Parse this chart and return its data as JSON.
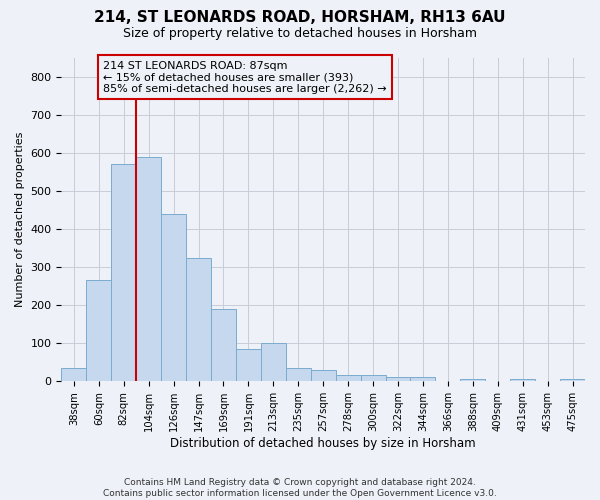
{
  "title_line1": "214, ST LEONARDS ROAD, HORSHAM, RH13 6AU",
  "title_line2": "Size of property relative to detached houses in Horsham",
  "xlabel": "Distribution of detached houses by size in Horsham",
  "ylabel": "Number of detached properties",
  "footer_line1": "Contains HM Land Registry data © Crown copyright and database right 2024.",
  "footer_line2": "Contains public sector information licensed under the Open Government Licence v3.0.",
  "categories": [
    "38sqm",
    "60sqm",
    "82sqm",
    "104sqm",
    "126sqm",
    "147sqm",
    "169sqm",
    "191sqm",
    "213sqm",
    "235sqm",
    "257sqm",
    "278sqm",
    "300sqm",
    "322sqm",
    "344sqm",
    "366sqm",
    "388sqm",
    "409sqm",
    "431sqm",
    "453sqm",
    "475sqm"
  ],
  "values": [
    35,
    265,
    570,
    590,
    440,
    325,
    190,
    85,
    100,
    35,
    30,
    17,
    17,
    12,
    11,
    0,
    7,
    0,
    7,
    0,
    7
  ],
  "bar_color": "#c5d8ee",
  "bar_edge_color": "#7aabce",
  "grid_color": "#c8ccd8",
  "bg_color": "#eef1f8",
  "vline_index": 2,
  "vline_color": "#cc0000",
  "annotation_text": "214 ST LEONARDS ROAD: 87sqm\n← 15% of detached houses are smaller (393)\n85% of semi-detached houses are larger (2,262) →",
  "annotation_box_edgecolor": "#cc0000",
  "ylim": [
    0,
    850
  ],
  "yticks": [
    0,
    100,
    200,
    300,
    400,
    500,
    600,
    700,
    800
  ]
}
